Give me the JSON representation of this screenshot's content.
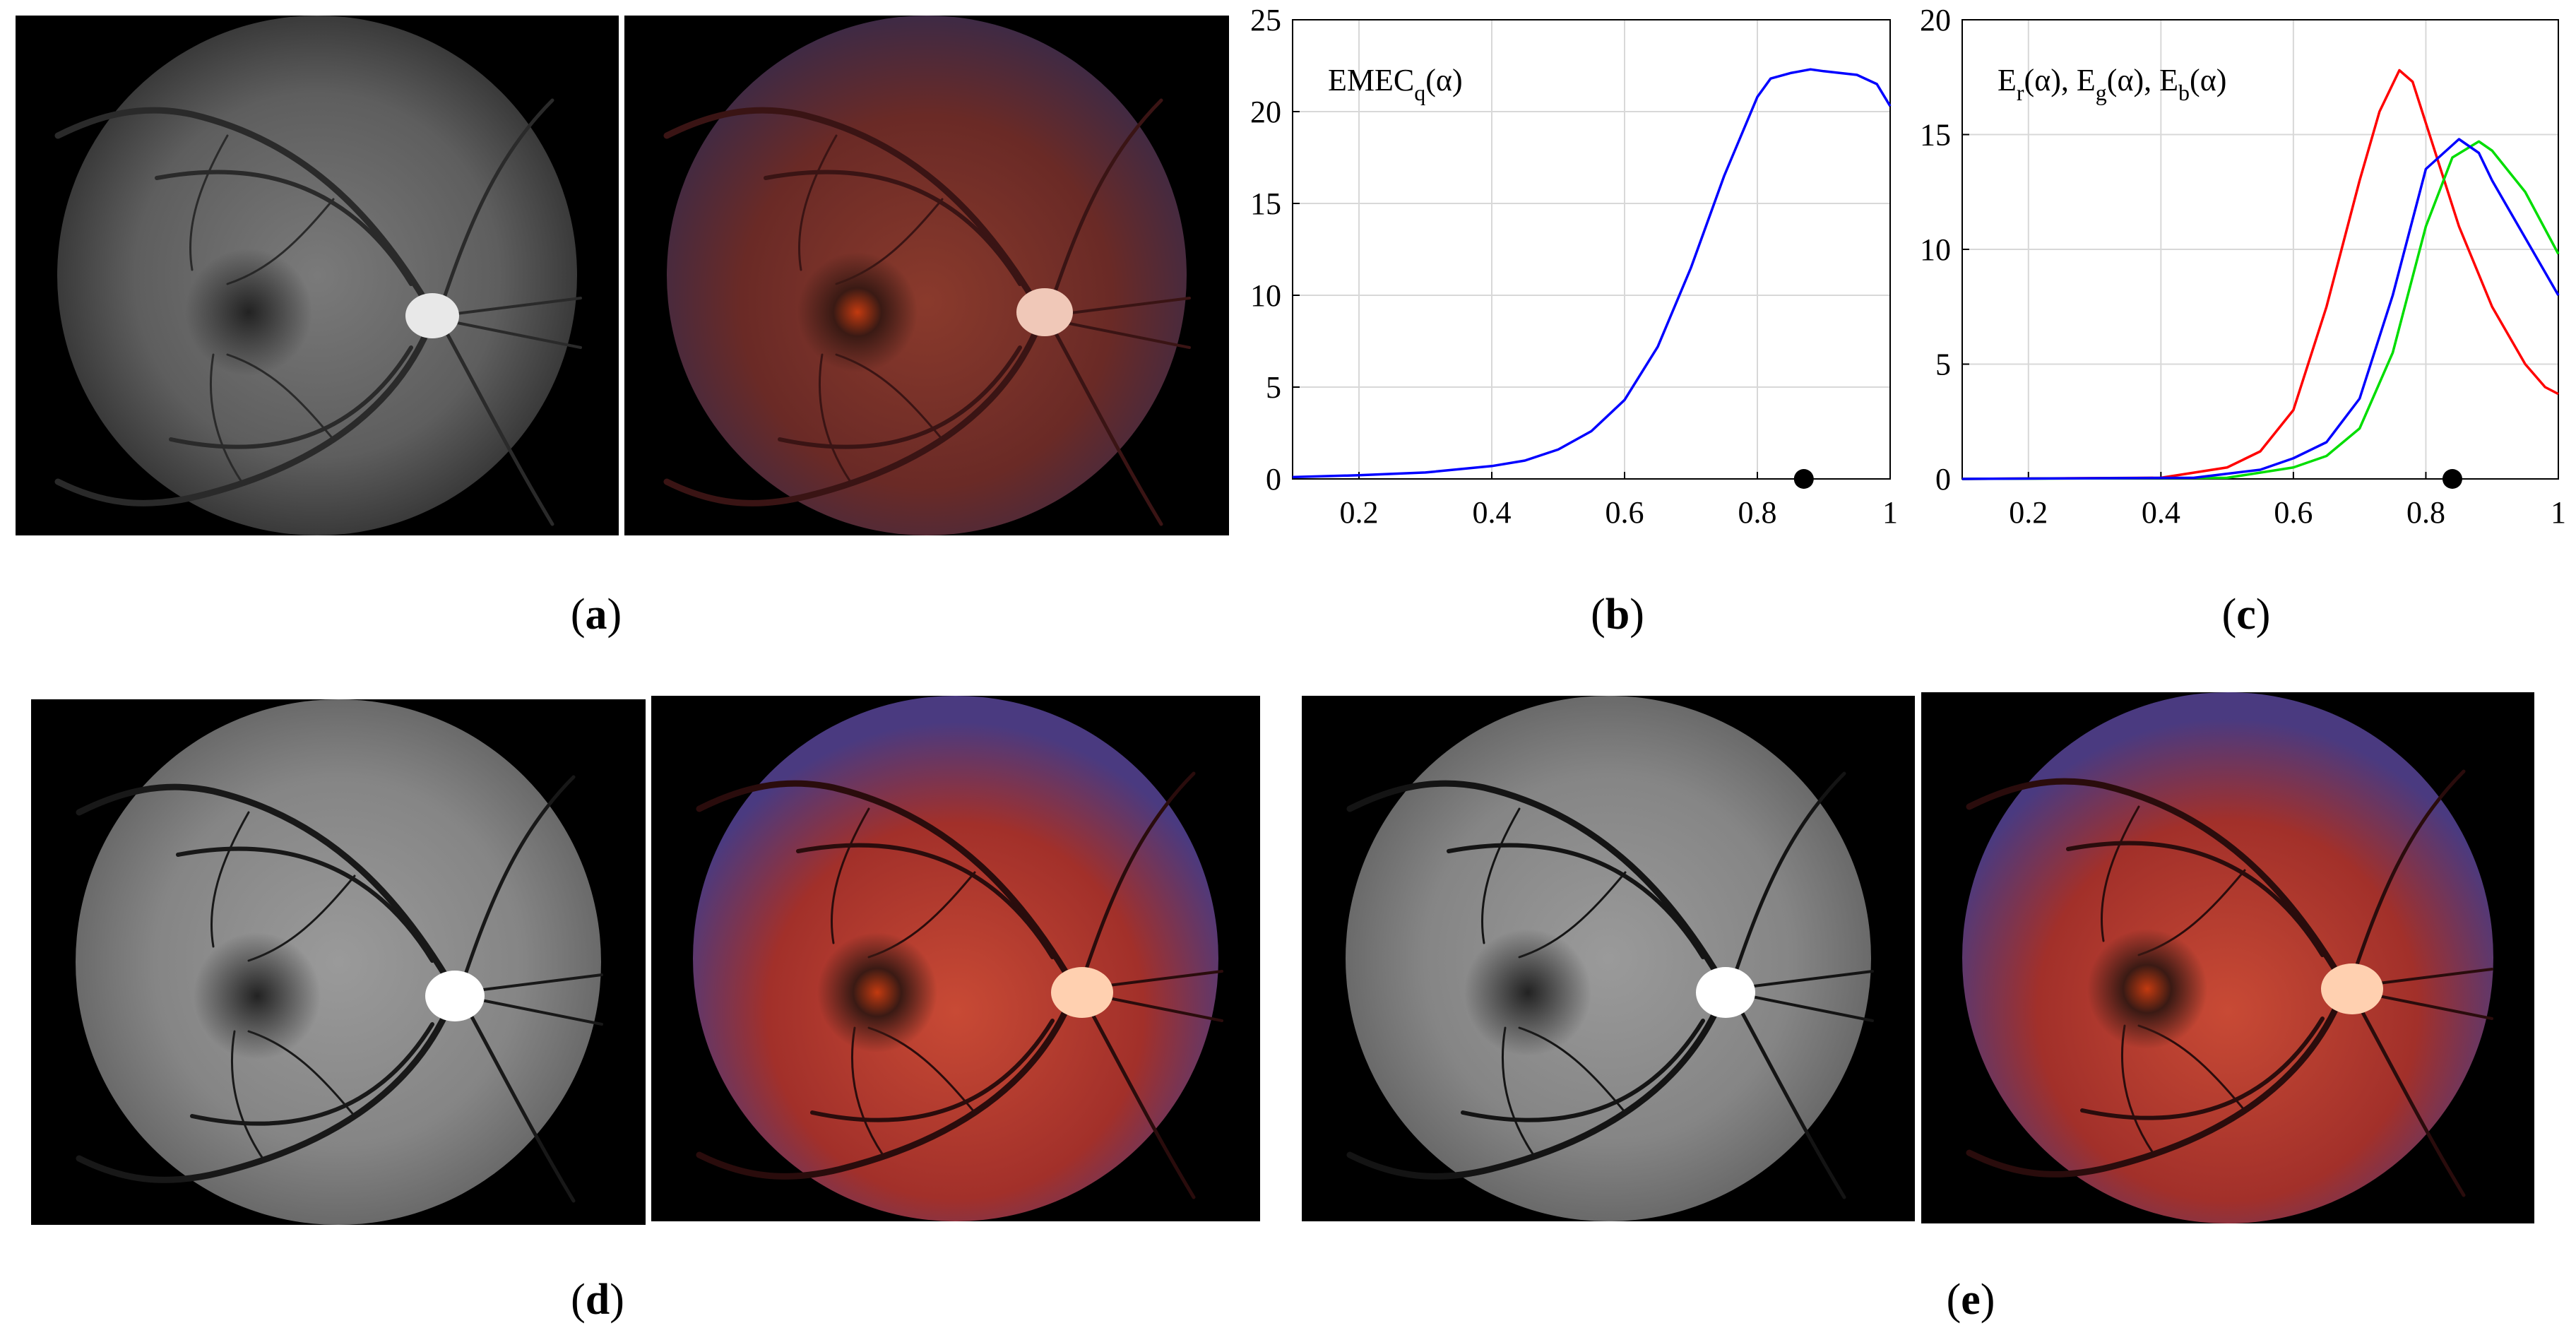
{
  "captions": {
    "a": "a",
    "b": "b",
    "c": "c",
    "d": "d",
    "e": "e"
  },
  "images": {
    "a_gray": "fundus-grayscale-original",
    "a_color": "fundus-color-original",
    "d_gray": "fundus-grayscale-enhanced-d",
    "d_color": "fundus-color-enhanced-d",
    "e_gray": "fundus-grayscale-enhanced-e",
    "e_color": "fundus-color-enhanced-e"
  },
  "chart_data": [
    {
      "type": "line",
      "title": "EMEC_q(α)",
      "label_main": "EMEC",
      "label_sub": "q",
      "label_arg": "(α)",
      "xlim": [
        0.1,
        1.0
      ],
      "ylim": [
        0,
        25
      ],
      "xticks": [
        "0.2",
        "0.4",
        "0.6",
        "0.8",
        "1"
      ],
      "xtick_values": [
        0.2,
        0.4,
        0.6,
        0.8,
        1.0
      ],
      "yticks": [
        "0",
        "5",
        "10",
        "15",
        "20",
        "25"
      ],
      "ytick_values": [
        0,
        5,
        10,
        15,
        20,
        25
      ],
      "grid": true,
      "series": [
        {
          "name": "EMEC_q",
          "color": "#0000ff",
          "x": [
            0.1,
            0.2,
            0.3,
            0.4,
            0.45,
            0.5,
            0.55,
            0.6,
            0.65,
            0.7,
            0.75,
            0.8,
            0.82,
            0.85,
            0.88,
            0.9,
            0.95,
            0.98,
            1.0
          ],
          "y": [
            0.1,
            0.2,
            0.35,
            0.7,
            1.0,
            1.6,
            2.6,
            4.3,
            7.2,
            11.5,
            16.5,
            20.8,
            21.8,
            22.1,
            22.3,
            22.2,
            22.0,
            21.5,
            20.3
          ]
        }
      ],
      "marker": {
        "x": 0.87,
        "y": 0,
        "color": "#000000"
      }
    },
    {
      "type": "line",
      "title": "E_r(α), E_g(α), E_b(α)",
      "labels": [
        {
          "main": "E",
          "sub": "r",
          "arg": "(α),"
        },
        {
          "main": "E",
          "sub": "g",
          "arg": "(α),"
        },
        {
          "main": "E",
          "sub": "b",
          "arg": "(α)"
        }
      ],
      "xlim": [
        0.1,
        1.0
      ],
      "ylim": [
        0,
        20
      ],
      "xticks": [
        "0.2",
        "0.4",
        "0.6",
        "0.8",
        "1"
      ],
      "xtick_values": [
        0.2,
        0.4,
        0.6,
        0.8,
        1.0
      ],
      "yticks": [
        "0",
        "5",
        "10",
        "15",
        "20"
      ],
      "ytick_values": [
        0,
        5,
        10,
        15,
        20
      ],
      "grid": true,
      "series": [
        {
          "name": "E_r",
          "color": "#ff0000",
          "x": [
            0.1,
            0.4,
            0.5,
            0.55,
            0.6,
            0.65,
            0.7,
            0.73,
            0.76,
            0.78,
            0.8,
            0.85,
            0.9,
            0.95,
            0.98,
            1.0
          ],
          "y": [
            0,
            0.05,
            0.5,
            1.2,
            3.0,
            7.5,
            13.0,
            16.0,
            17.8,
            17.3,
            15.5,
            11.0,
            7.5,
            5.0,
            4.0,
            3.7
          ]
        },
        {
          "name": "E_g",
          "color": "#00dd00",
          "x": [
            0.1,
            0.5,
            0.6,
            0.65,
            0.7,
            0.75,
            0.8,
            0.84,
            0.88,
            0.9,
            0.95,
            1.0
          ],
          "y": [
            0,
            0.05,
            0.5,
            1.0,
            2.2,
            5.5,
            11.0,
            14.0,
            14.7,
            14.3,
            12.5,
            9.8
          ]
        },
        {
          "name": "E_b",
          "color": "#0000ff",
          "x": [
            0.1,
            0.45,
            0.55,
            0.6,
            0.65,
            0.7,
            0.75,
            0.8,
            0.85,
            0.88,
            0.9,
            0.95,
            1.0
          ],
          "y": [
            0,
            0.05,
            0.4,
            0.9,
            1.6,
            3.5,
            8.0,
            13.5,
            14.8,
            14.2,
            13.0,
            10.5,
            8.0
          ]
        }
      ],
      "marker": {
        "x": 0.84,
        "y": 0,
        "color": "#000000"
      }
    }
  ]
}
